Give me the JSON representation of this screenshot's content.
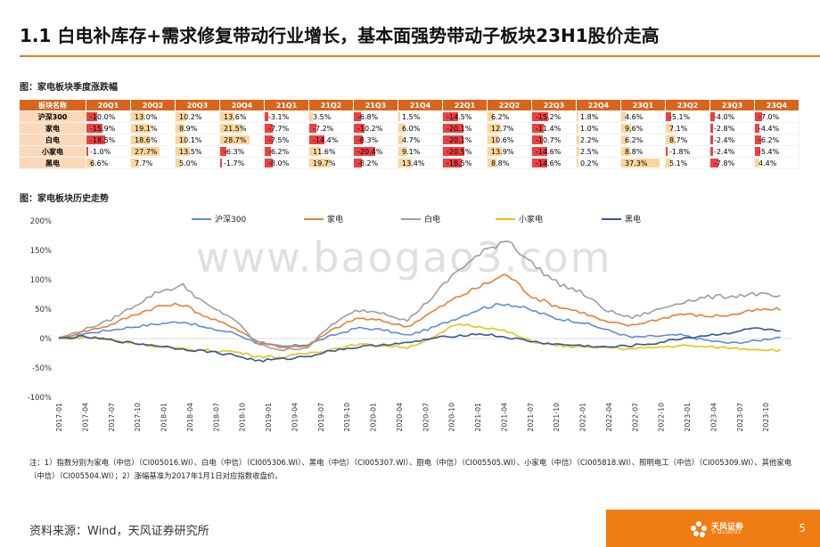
{
  "slide": {
    "title": "1.1 白电补库存+需求修复带动行业增长，基本面强势带动子板块23H1股价走高",
    "table_label": "图：家电板块季度涨跌幅",
    "chart_label": "图：家电板块历史走势",
    "note": "注：1）指数分别为家电（中信）（CI005016.WI）、白电（中信）（CI005306.WI）、黑电（中信）（CI005307.WI）、厨电（中信）（CI005505.WI）、小家电（中信）（CI005818.WI）、照明电工（中信）（CI005309.WI）、其他家电（中信）（CI005504.WI）；2）涨幅基准为2017年1月1日对应指数收盘价。",
    "source": "资料来源：Wind，天风证券研究所",
    "page_number": "5",
    "logo_text": "天风证券",
    "logo_subtext": "TF SECURITIES",
    "watermark": "www.baogao3.com",
    "accent_color": "#f07c14"
  },
  "table": {
    "header_first": "板块名称",
    "quarters": [
      "20Q1",
      "20Q2",
      "20Q3",
      "20Q4",
      "21Q1",
      "21Q2",
      "21Q3",
      "21Q4",
      "22Q1",
      "22Q2",
      "22Q3",
      "22Q4",
      "23Q1",
      "23Q2",
      "23Q3",
      "23Q4"
    ],
    "rows": [
      {
        "name": "沪深300",
        "values": [
          "-10.0%",
          "13.0%",
          "10.2%",
          "13.6%",
          "-3.1%",
          "3.5%",
          "-6.8%",
          "1.5%",
          "-14.5%",
          "6.2%",
          "-15.2%",
          "1.8%",
          "4.6%",
          "-5.1%",
          "-4.0%",
          "-7.0%"
        ]
      },
      {
        "name": "家电",
        "values": [
          "-15.9%",
          "19.1%",
          "8.9%",
          "21.5%",
          "-7.7%",
          "-7.2%",
          "-10.2%",
          "6.0%",
          "-20.1%",
          "12.7%",
          "-11.4%",
          "1.0%",
          "9.6%",
          "7.1%",
          "-2.8%",
          "-4.4%"
        ]
      },
      {
        "name": "白电",
        "values": [
          "-18.5%",
          "18.6%",
          "10.1%",
          "28.7%",
          "-7.5%",
          "-14.4%",
          "-8.3%",
          "4.7%",
          "-20.1%",
          "10.6%",
          "-10.7%",
          "2.2%",
          "6.2%",
          "8.7%",
          "-2.4%",
          "-6.2%"
        ]
      },
      {
        "name": "小家电",
        "values": [
          "-1.0%",
          "27.7%",
          "13.5%",
          "-6.3%",
          "-6.2%",
          "11.6%",
          "-20.4%",
          "9.1%",
          "-20.5%",
          "13.9%",
          "-14.6%",
          "2.5%",
          "8.8%",
          "-1.8%",
          "-2.4%",
          "-5.4%"
        ]
      },
      {
        "name": "黑电",
        "values": [
          "6.6%",
          "7.7%",
          "5.0%",
          "-1.7%",
          "-8.0%",
          "19.7%",
          "-8.2%",
          "13.4%",
          "-18.5%",
          "8.8%",
          "-14.6%",
          "0.2%",
          "37.3%",
          "5.1%",
          "-7.8%",
          "4.4%"
        ]
      }
    ]
  },
  "chart_data": {
    "type": "line",
    "legend_position": "top",
    "grid": false,
    "ylim": [
      -100,
      200
    ],
    "yticks": [
      "200%",
      "150%",
      "100%",
      "50%",
      "0%",
      "-50%",
      "-100%"
    ],
    "xticks": [
      "2017-01",
      "2017-04",
      "2017-07",
      "2017-10",
      "2018-01",
      "2018-04",
      "2018-07",
      "2018-10",
      "2019-01",
      "2019-04",
      "2019-07",
      "2019-10",
      "2020-01",
      "2020-04",
      "2020-07",
      "2020-10",
      "2021-01",
      "2021-04",
      "2021-07",
      "2021-10",
      "2022-01",
      "2022-04",
      "2022-07",
      "2022-10",
      "2023-01",
      "2023-04",
      "2023-07",
      "2023-10"
    ],
    "series": [
      {
        "name": "沪深300",
        "color": "#5b8fd6",
        "values": [
          0,
          8,
          14,
          20,
          25,
          29,
          17,
          10,
          -8,
          -14,
          -10,
          5,
          18,
          15,
          5,
          18,
          35,
          52,
          60,
          48,
          34,
          28,
          15,
          2,
          4,
          6,
          -3,
          -8,
          -4,
          3
        ]
      },
      {
        "name": "家电",
        "color": "#e97f36",
        "values": [
          0,
          12,
          22,
          40,
          55,
          58,
          35,
          20,
          -5,
          -15,
          -12,
          15,
          35,
          30,
          20,
          45,
          70,
          90,
          110,
          72,
          55,
          45,
          28,
          22,
          32,
          42,
          38,
          40,
          48,
          50
        ]
      },
      {
        "name": "白电",
        "color": "#9e9e9e",
        "values": [
          0,
          15,
          30,
          55,
          80,
          90,
          55,
          35,
          -10,
          -20,
          -15,
          25,
          48,
          45,
          30,
          70,
          115,
          145,
          170,
          128,
          95,
          78,
          48,
          35,
          48,
          62,
          70,
          72,
          76,
          70
        ]
      },
      {
        "name": "小家电",
        "color": "#e8c40c",
        "values": [
          0,
          2,
          -2,
          -8,
          -14,
          -18,
          -20,
          -22,
          -30,
          -32,
          -25,
          -18,
          -10,
          -12,
          -15,
          0,
          25,
          20,
          12,
          -5,
          -12,
          -15,
          -15,
          -18,
          -15,
          -12,
          -14,
          -16,
          -18,
          -20
        ]
      },
      {
        "name": "黑电",
        "color": "#33569a",
        "values": [
          0,
          3,
          -2,
          -8,
          -12,
          -18,
          -22,
          -28,
          -38,
          -35,
          -30,
          -20,
          -15,
          -10,
          -8,
          0,
          5,
          8,
          2,
          -5,
          -10,
          -12,
          -15,
          -12,
          -8,
          0,
          5,
          10,
          18,
          12
        ]
      }
    ]
  }
}
